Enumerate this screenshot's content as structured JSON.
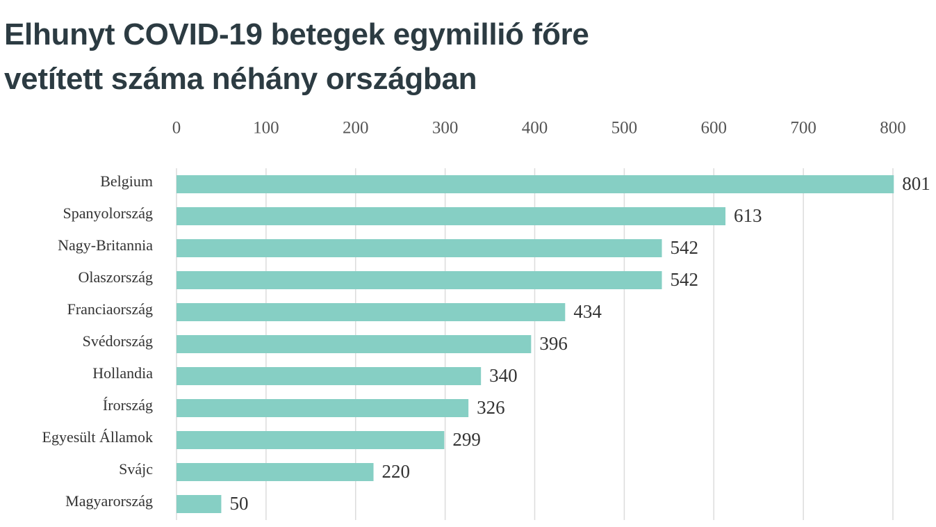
{
  "chart_data": {
    "type": "bar",
    "orientation": "horizontal",
    "title": "Elhunyt COVID-19 betegek egymillió főre\nvetített száma néhány országban",
    "categories": [
      "Belgium",
      "Spanyolország",
      "Nagy-Britannia",
      "Olaszország",
      "Franciaország",
      "Svédország",
      "Hollandia",
      "Írország",
      "Egyesült Államok",
      "Svájc",
      "Magyarország"
    ],
    "values": [
      801,
      613,
      542,
      542,
      434,
      396,
      340,
      326,
      299,
      220,
      50
    ],
    "color": "#86cfc4",
    "xlim": [
      0,
      800
    ],
    "xticks": [
      0,
      100,
      200,
      300,
      400,
      500,
      600,
      700,
      800
    ],
    "grid": true
  }
}
